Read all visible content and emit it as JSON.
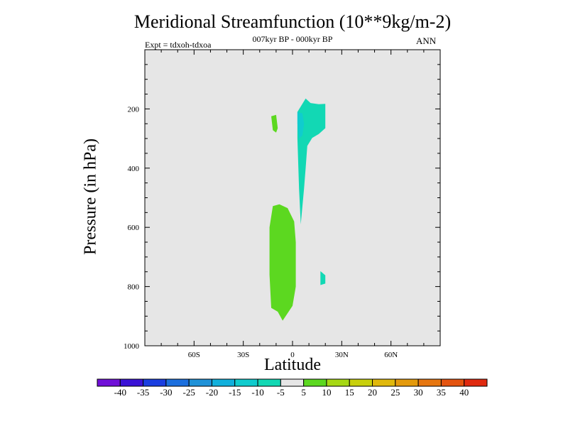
{
  "chart_data": {
    "type": "contour",
    "title": "Meridional Streamfunction (10**9kg/m-2)",
    "subtitle": "007kyr BP - 000kyr BP",
    "experiment": "Expt = tdxoh-tdxoa",
    "season": "ANN",
    "xlabel": "Latitude",
    "ylabel": "Pressure (in hPa)",
    "xlim": [
      -90,
      90
    ],
    "ylim": [
      1000,
      0
    ],
    "y_reversed": true,
    "x_ticks": [
      {
        "v": -60,
        "label": "60S"
      },
      {
        "v": -30,
        "label": "30S"
      },
      {
        "v": 0,
        "label": "0"
      },
      {
        "v": 30,
        "label": "30N"
      },
      {
        "v": 60,
        "label": "60N"
      }
    ],
    "y_ticks": [
      {
        "v": 200,
        "label": "200"
      },
      {
        "v": 400,
        "label": "400"
      },
      {
        "v": 600,
        "label": "600"
      },
      {
        "v": 800,
        "label": "800"
      },
      {
        "v": 1000,
        "label": "1000"
      }
    ],
    "background_color": "#e6e6e6",
    "grid": false,
    "colorbar": {
      "placement": "bottom",
      "levels": [
        "-40",
        "-35",
        "-30",
        "-25",
        "-20",
        "-15",
        "-10",
        "-5",
        "5",
        "10",
        "15",
        "20",
        "25",
        "30",
        "35",
        "40"
      ],
      "colors": [
        "#7010d8",
        "#3a12d6",
        "#1a3ee0",
        "#1b6fde",
        "#1f92d8",
        "#11b0dc",
        "#10ccce",
        "#12d8b4",
        "#e6e6e6",
        "#5cd820",
        "#a6d814",
        "#c8d00c",
        "#e0b80c",
        "#e49a0c",
        "#e67610",
        "#e45410",
        "#e02a10"
      ]
    },
    "regions": [
      {
        "name": "negative-anomaly-upper",
        "range": "-10 to -5",
        "color": "#12d8b4",
        "points": [
          [
            8,
            165
          ],
          [
            11,
            180
          ],
          [
            16,
            184
          ],
          [
            20,
            183
          ],
          [
            20,
            265
          ],
          [
            16,
            285
          ],
          [
            12,
            298
          ],
          [
            9,
            325
          ],
          [
            8,
            400
          ],
          [
            7,
            470
          ],
          [
            5,
            590
          ],
          [
            4,
            470
          ],
          [
            3,
            300
          ],
          [
            3,
            210
          ]
        ]
      },
      {
        "name": "negative-anomaly-core",
        "range": "-15 to -10",
        "color": "#10ccce",
        "points": [
          [
            3,
            210
          ],
          [
            6,
            215
          ],
          [
            7,
            250
          ],
          [
            6,
            290
          ],
          [
            4,
            300
          ],
          [
            3,
            250
          ]
        ]
      },
      {
        "name": "negative-anomaly-small",
        "range": "-10 to -5",
        "color": "#12d8b4",
        "points": [
          [
            17,
            748
          ],
          [
            20,
            762
          ],
          [
            20,
            790
          ],
          [
            17,
            795
          ]
        ]
      },
      {
        "name": "positive-anomaly-upper",
        "range": "5 to 10",
        "color": "#5cd820",
        "points": [
          [
            -13,
            225
          ],
          [
            -10,
            220
          ],
          [
            -9,
            265
          ],
          [
            -10,
            280
          ],
          [
            -12,
            272
          ]
        ]
      },
      {
        "name": "positive-anomaly-lower",
        "range": "5 to 10",
        "color": "#5cd820",
        "points": [
          [
            -12,
            528
          ],
          [
            -8,
            522
          ],
          [
            -3,
            535
          ],
          [
            1,
            580
          ],
          [
            2,
            650
          ],
          [
            2,
            800
          ],
          [
            0,
            865
          ],
          [
            -6,
            915
          ],
          [
            -9,
            885
          ],
          [
            -13,
            872
          ],
          [
            -14,
            760
          ],
          [
            -14,
            600
          ]
        ]
      }
    ]
  }
}
